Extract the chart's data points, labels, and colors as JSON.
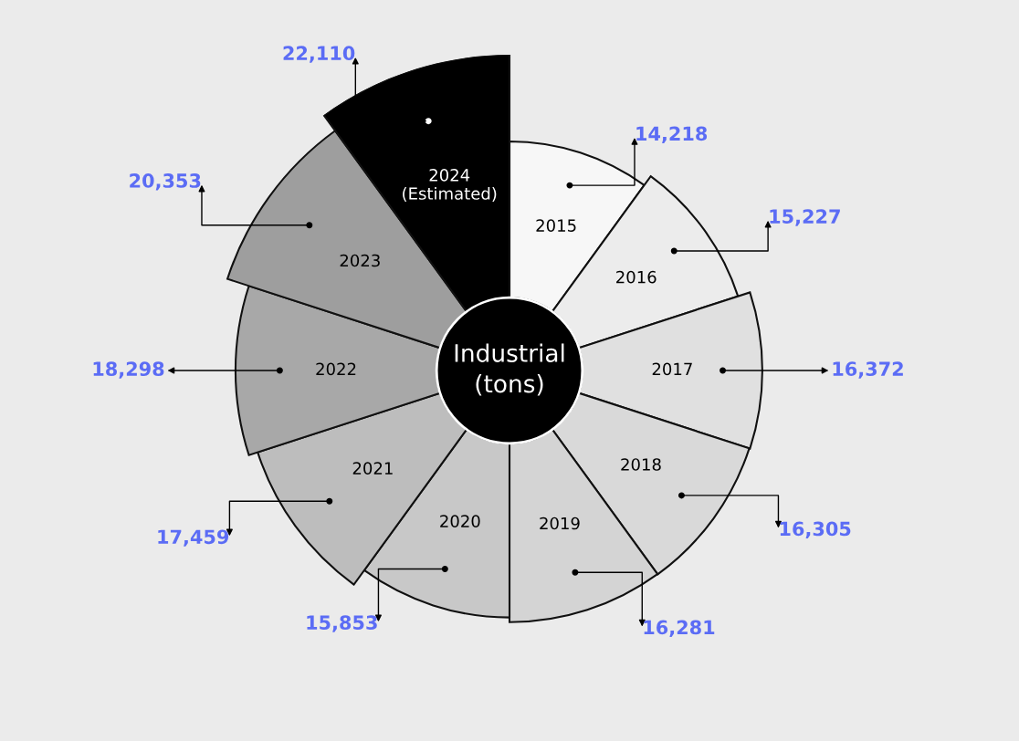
{
  "chart_data": {
    "type": "other",
    "title": "Industrial\n(tons)",
    "categories": [
      "2015",
      "2016",
      "2017",
      "2018",
      "2019",
      "2020",
      "2021",
      "2022",
      "2023",
      "2024\n(Estimated)"
    ],
    "values": [
      14218,
      15227,
      16372,
      16305,
      16281,
      15853,
      17459,
      18298,
      20353,
      22110
    ],
    "colors": [
      "#f7f7f7",
      "#ececec",
      "#e0e0e0",
      "#d9d9d9",
      "#d4d4d4",
      "#c8c8c8",
      "#bdbdbd",
      "#a8a8a8",
      "#9e9e9e",
      "#000000"
    ],
    "value_labels": [
      "14,218",
      "15,227",
      "16,372",
      "16,305",
      "16,281",
      "15,853",
      "17,459",
      "18,298",
      "20,353",
      "22,110"
    ]
  }
}
